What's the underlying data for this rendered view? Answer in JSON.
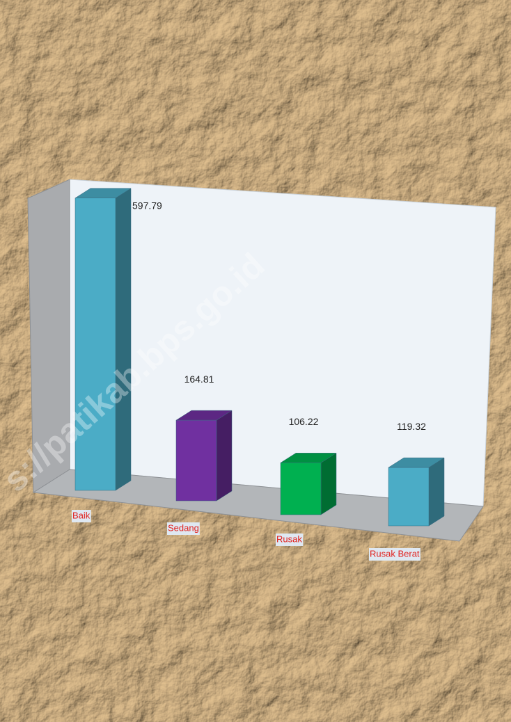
{
  "chart_data": {
    "type": "bar3d",
    "categories": [
      "Baik",
      "Sedang",
      "Rusak",
      "Rusak Berat"
    ],
    "values": [
      597.79,
      164.81,
      106.22,
      119.32
    ],
    "colors": [
      "#4bacc6",
      "#7030a0",
      "#00b050",
      "#4bacc6"
    ],
    "watermark": "s://patikab.bps.go.id"
  }
}
